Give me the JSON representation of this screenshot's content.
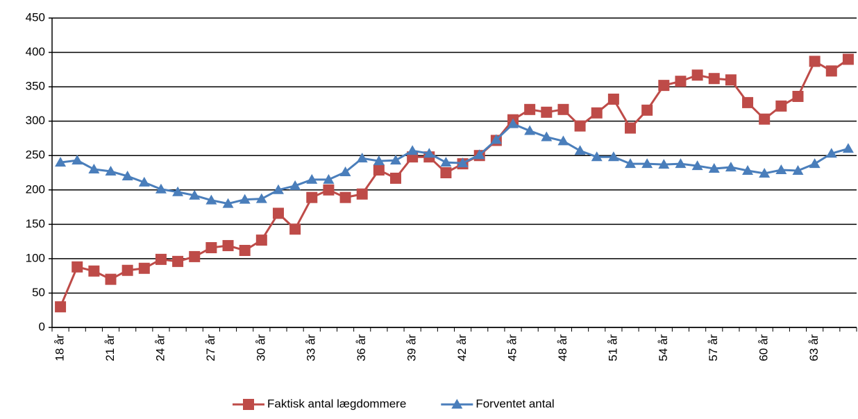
{
  "chart_data": {
    "type": "line",
    "categories": [
      "18 år",
      null,
      null,
      "21 år",
      null,
      null,
      "24 år",
      null,
      null,
      "27 år",
      null,
      null,
      "30 år",
      null,
      null,
      "33 år",
      null,
      null,
      "36 år",
      null,
      null,
      "39 år",
      null,
      null,
      "42 år",
      null,
      null,
      "45 år",
      null,
      null,
      "48 år",
      null,
      null,
      "51 år",
      null,
      null,
      "54 år",
      null,
      null,
      "57 år",
      null,
      null,
      "60 år",
      null,
      null,
      "63 år",
      null,
      null
    ],
    "series": [
      {
        "name": "Faktisk antal lægdommere",
        "color": "#be4b48",
        "marker": "square",
        "values": [
          30,
          88,
          82,
          70,
          83,
          86,
          99,
          96,
          103,
          116,
          119,
          112,
          127,
          166,
          143,
          189,
          200,
          189,
          194,
          229,
          217,
          248,
          248,
          225,
          238,
          250,
          272,
          302,
          317,
          313,
          317,
          293,
          312,
          332,
          290,
          316,
          352,
          358,
          367,
          362,
          360,
          327,
          303,
          322,
          336,
          387,
          373,
          390
        ]
      },
      {
        "name": "Forventet antal",
        "color": "#4a7ebb",
        "marker": "triangle",
        "values": [
          240,
          243,
          230,
          227,
          220,
          211,
          201,
          197,
          192,
          185,
          180,
          186,
          187,
          200,
          206,
          215,
          215,
          226,
          246,
          242,
          243,
          257,
          253,
          240,
          239,
          251,
          273,
          296,
          286,
          277,
          271,
          257,
          248,
          248,
          238,
          238,
          237,
          238,
          235,
          231,
          233,
          228,
          224,
          229,
          228,
          238,
          253,
          260
        ]
      }
    ],
    "ylim": [
      0,
      450
    ],
    "yticks": [
      0,
      50,
      100,
      150,
      200,
      250,
      300,
      350,
      400,
      450
    ],
    "grid": true,
    "legend": "bottom"
  }
}
